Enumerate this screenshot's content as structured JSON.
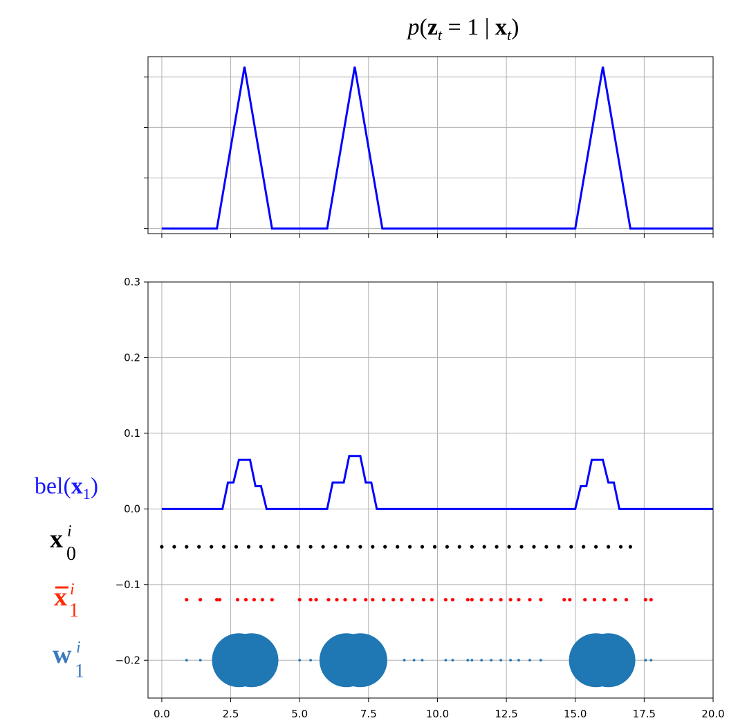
{
  "colors": {
    "belief_line": "#0000ff",
    "initial_particles": "#000000",
    "predicted_particles": "#ff0000",
    "weights": "#1f77b4",
    "grid": "#b0b0b0"
  },
  "chart_data": [
    {
      "type": "line",
      "title": "p(z_t = 1 | x_t)",
      "title_parts": {
        "p": "p",
        "z": "z",
        "t": "t",
        "eq": " = 1 | ",
        "x": "x"
      },
      "xlim": [
        -0.5,
        20.0
      ],
      "ylim": [
        -0.005,
        0.17
      ],
      "grid": true,
      "ytick_values": [
        0.0,
        0.05,
        0.1,
        0.15
      ],
      "xtick_values": [
        0.0,
        2.5,
        5.0,
        7.5,
        10.0,
        12.5,
        15.0,
        17.5,
        20.0
      ],
      "series": [
        {
          "color": "#0000ff",
          "x": [
            0,
            2,
            3,
            4,
            6,
            7,
            8,
            15,
            16,
            17,
            20
          ],
          "y": [
            0,
            0,
            0.16,
            0,
            0,
            0.16,
            0,
            0,
            0.16,
            0,
            0
          ]
        }
      ]
    },
    {
      "type": "line",
      "xlim": [
        -0.5,
        20.0
      ],
      "ylim": [
        -0.25,
        0.3
      ],
      "grid": true,
      "yticks": [
        "0.3",
        "0.2",
        "0.1",
        "0.0",
        "−0.1",
        "−0.2"
      ],
      "ytick_values": [
        0.3,
        0.2,
        0.1,
        0.0,
        -0.1,
        -0.2
      ],
      "xticks": [
        "0.0",
        "2.5",
        "5.0",
        "7.5",
        "10.0",
        "12.5",
        "15.0",
        "17.5",
        "20.0"
      ],
      "xtick_values": [
        0.0,
        2.5,
        5.0,
        7.5,
        10.0,
        12.5,
        15.0,
        17.5,
        20.0
      ],
      "row_labels": {
        "bel": {
          "text": "bel(",
          "var": "x",
          "sub": "1",
          "close": ")"
        },
        "x0": {
          "var": "x",
          "sup": "i",
          "sub": "0"
        },
        "x1bar": {
          "var": "x",
          "sup": "i",
          "sub": "1"
        },
        "w1": {
          "var": "w",
          "sup": "i",
          "sub": "1"
        }
      },
      "series": [
        {
          "role": "belief",
          "color": "#0000ff",
          "x": [
            0,
            2.2,
            2.4,
            2.6,
            2.8,
            3.2,
            3.4,
            3.6,
            3.8,
            6.0,
            6.2,
            6.6,
            6.8,
            7.2,
            7.4,
            7.6,
            7.8,
            15.0,
            15.2,
            15.4,
            15.6,
            16.0,
            16.2,
            16.4,
            16.6,
            20.0
          ],
          "y": [
            0,
            0,
            0.035,
            0.035,
            0.065,
            0.065,
            0.03,
            0.03,
            0,
            0,
            0.035,
            0.035,
            0.07,
            0.07,
            0.035,
            0.035,
            0,
            0,
            0.03,
            0.03,
            0.065,
            0.065,
            0.035,
            0.035,
            0,
            0
          ]
        },
        {
          "role": "initial-particles",
          "color": "#000000",
          "y": -0.05,
          "x": [
            0,
            0.45,
            0.9,
            1.35,
            1.8,
            2.25,
            2.7,
            3.15,
            3.6,
            4.05,
            4.5,
            4.95,
            5.4,
            5.85,
            6.3,
            6.75,
            7.2,
            7.65,
            8.1,
            8.55,
            9.0,
            9.45,
            9.9,
            10.35,
            10.8,
            11.25,
            11.7,
            12.15,
            12.6,
            13.05,
            13.5,
            13.95,
            14.4,
            14.85,
            15.3,
            15.75,
            16.2,
            16.65,
            17.0
          ]
        },
        {
          "role": "predicted-particles",
          "color": "#ff0000",
          "y": -0.12,
          "x": [
            0.9,
            1.4,
            2.0,
            2.1,
            2.75,
            3.05,
            3.35,
            3.65,
            4.0,
            5.0,
            5.4,
            5.6,
            6.05,
            6.35,
            6.65,
            7.0,
            7.4,
            7.65,
            8.05,
            8.4,
            8.7,
            9.1,
            9.5,
            9.8,
            10.3,
            10.55,
            11.1,
            11.25,
            11.6,
            11.95,
            12.3,
            12.65,
            12.95,
            13.35,
            13.75,
            14.6,
            14.8,
            15.35,
            15.7,
            16.05,
            16.45,
            16.85,
            17.55,
            17.75
          ]
        },
        {
          "role": "weights",
          "color": "#1f77b4",
          "y": -0.2,
          "points": [
            {
              "x": 0.9,
              "w": 0.004
            },
            {
              "x": 1.4,
              "w": 0.004
            },
            {
              "x": 2.0,
              "w": 0.004
            },
            {
              "x": 2.8,
              "w": 1.0
            },
            {
              "x": 3.25,
              "w": 1.0
            },
            {
              "x": 5.0,
              "w": 0.004
            },
            {
              "x": 5.4,
              "w": 0.004
            },
            {
              "x": 6.7,
              "w": 1.0
            },
            {
              "x": 7.2,
              "w": 1.0
            },
            {
              "x": 8.8,
              "w": 0.004
            },
            {
              "x": 9.15,
              "w": 0.004
            },
            {
              "x": 9.45,
              "w": 0.004
            },
            {
              "x": 10.3,
              "w": 0.004
            },
            {
              "x": 10.55,
              "w": 0.004
            },
            {
              "x": 11.1,
              "w": 0.004
            },
            {
              "x": 11.25,
              "w": 0.004
            },
            {
              "x": 11.6,
              "w": 0.004
            },
            {
              "x": 11.95,
              "w": 0.004
            },
            {
              "x": 12.3,
              "w": 0.004
            },
            {
              "x": 12.65,
              "w": 0.004
            },
            {
              "x": 12.95,
              "w": 0.004
            },
            {
              "x": 13.35,
              "w": 0.004
            },
            {
              "x": 13.75,
              "w": 0.004
            },
            {
              "x": 15.75,
              "w": 1.0
            },
            {
              "x": 16.2,
              "w": 1.0
            },
            {
              "x": 17.55,
              "w": 0.004
            },
            {
              "x": 17.75,
              "w": 0.004
            }
          ]
        }
      ]
    }
  ]
}
